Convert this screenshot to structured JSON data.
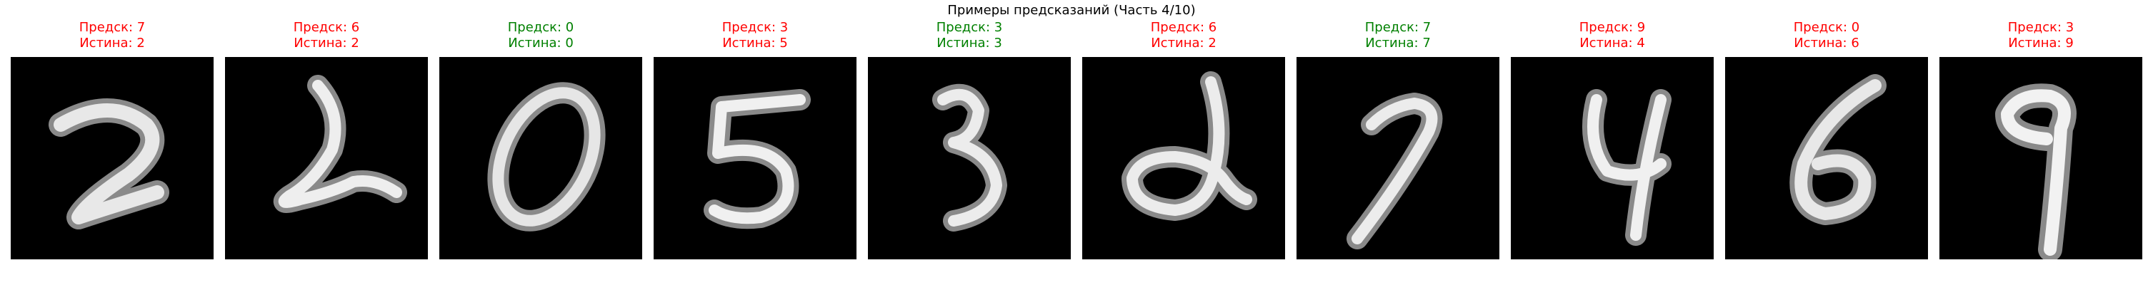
{
  "figure": {
    "title": "Примеры предсказаний (Часть 4/10)",
    "colors": {
      "correct": "#008000",
      "incorrect": "#ff0000",
      "image_background": "#000000"
    }
  },
  "samples": [
    {
      "pred_label": "Предск: 7",
      "true_label": "Истина: 2",
      "pred": 7,
      "truth": 2,
      "correct": false
    },
    {
      "pred_label": "Предск: 6",
      "true_label": "Истина: 2",
      "pred": 6,
      "truth": 2,
      "correct": false
    },
    {
      "pred_label": "Предск: 0",
      "true_label": "Истина: 0",
      "pred": 0,
      "truth": 0,
      "correct": true
    },
    {
      "pred_label": "Предск: 3",
      "true_label": "Истина: 5",
      "pred": 3,
      "truth": 5,
      "correct": false
    },
    {
      "pred_label": "Предск: 3",
      "true_label": "Истина: 3",
      "pred": 3,
      "truth": 3,
      "correct": true
    },
    {
      "pred_label": "Предск: 6",
      "true_label": "Истина: 2",
      "pred": 6,
      "truth": 2,
      "correct": false
    },
    {
      "pred_label": "Предск: 7",
      "true_label": "Истина: 7",
      "pred": 7,
      "truth": 7,
      "correct": true
    },
    {
      "pred_label": "Предск: 9",
      "true_label": "Истина: 4",
      "pred": 9,
      "truth": 4,
      "correct": false
    },
    {
      "pred_label": "Предск: 0",
      "true_label": "Истина: 6",
      "pred": 0,
      "truth": 6,
      "correct": false
    },
    {
      "pred_label": "Предск: 3",
      "true_label": "Истина: 9",
      "pred": 3,
      "truth": 9,
      "correct": false
    }
  ]
}
